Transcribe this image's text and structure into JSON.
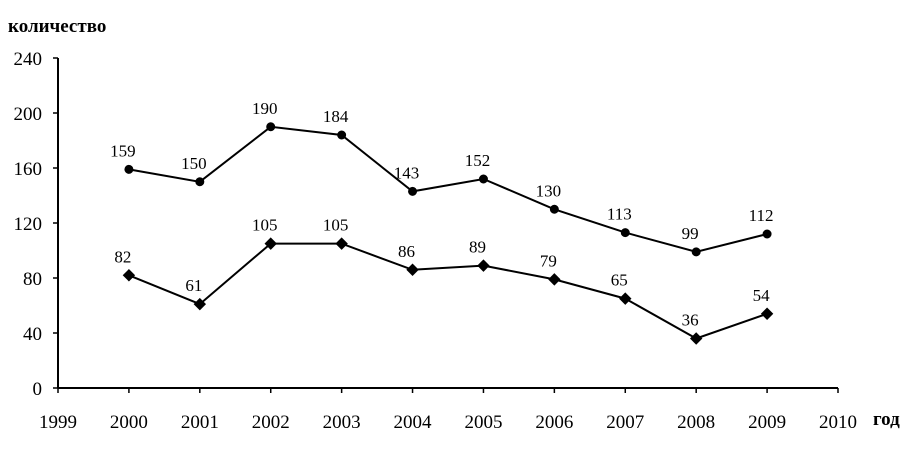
{
  "chart_data": {
    "type": "line",
    "title": "",
    "xlabel": "год",
    "ylabel": "количество",
    "xlim": [
      1999,
      2010
    ],
    "ylim": [
      0,
      240
    ],
    "x_ticks": [
      1999,
      2000,
      2001,
      2002,
      2003,
      2004,
      2005,
      2006,
      2007,
      2008,
      2009,
      2010
    ],
    "y_ticks": [
      0,
      40,
      80,
      120,
      160,
      200,
      240
    ],
    "x": [
      2000,
      2001,
      2002,
      2003,
      2004,
      2005,
      2006,
      2007,
      2008,
      2009
    ],
    "grid": false,
    "legend": "none",
    "series": [
      {
        "marker": "circle",
        "color": "#000000",
        "values": [
          159,
          150,
          190,
          184,
          143,
          152,
          130,
          113,
          99,
          112
        ]
      },
      {
        "marker": "diamond",
        "color": "#000000",
        "values": [
          82,
          61,
          105,
          105,
          86,
          89,
          79,
          65,
          36,
          54
        ]
      }
    ]
  }
}
